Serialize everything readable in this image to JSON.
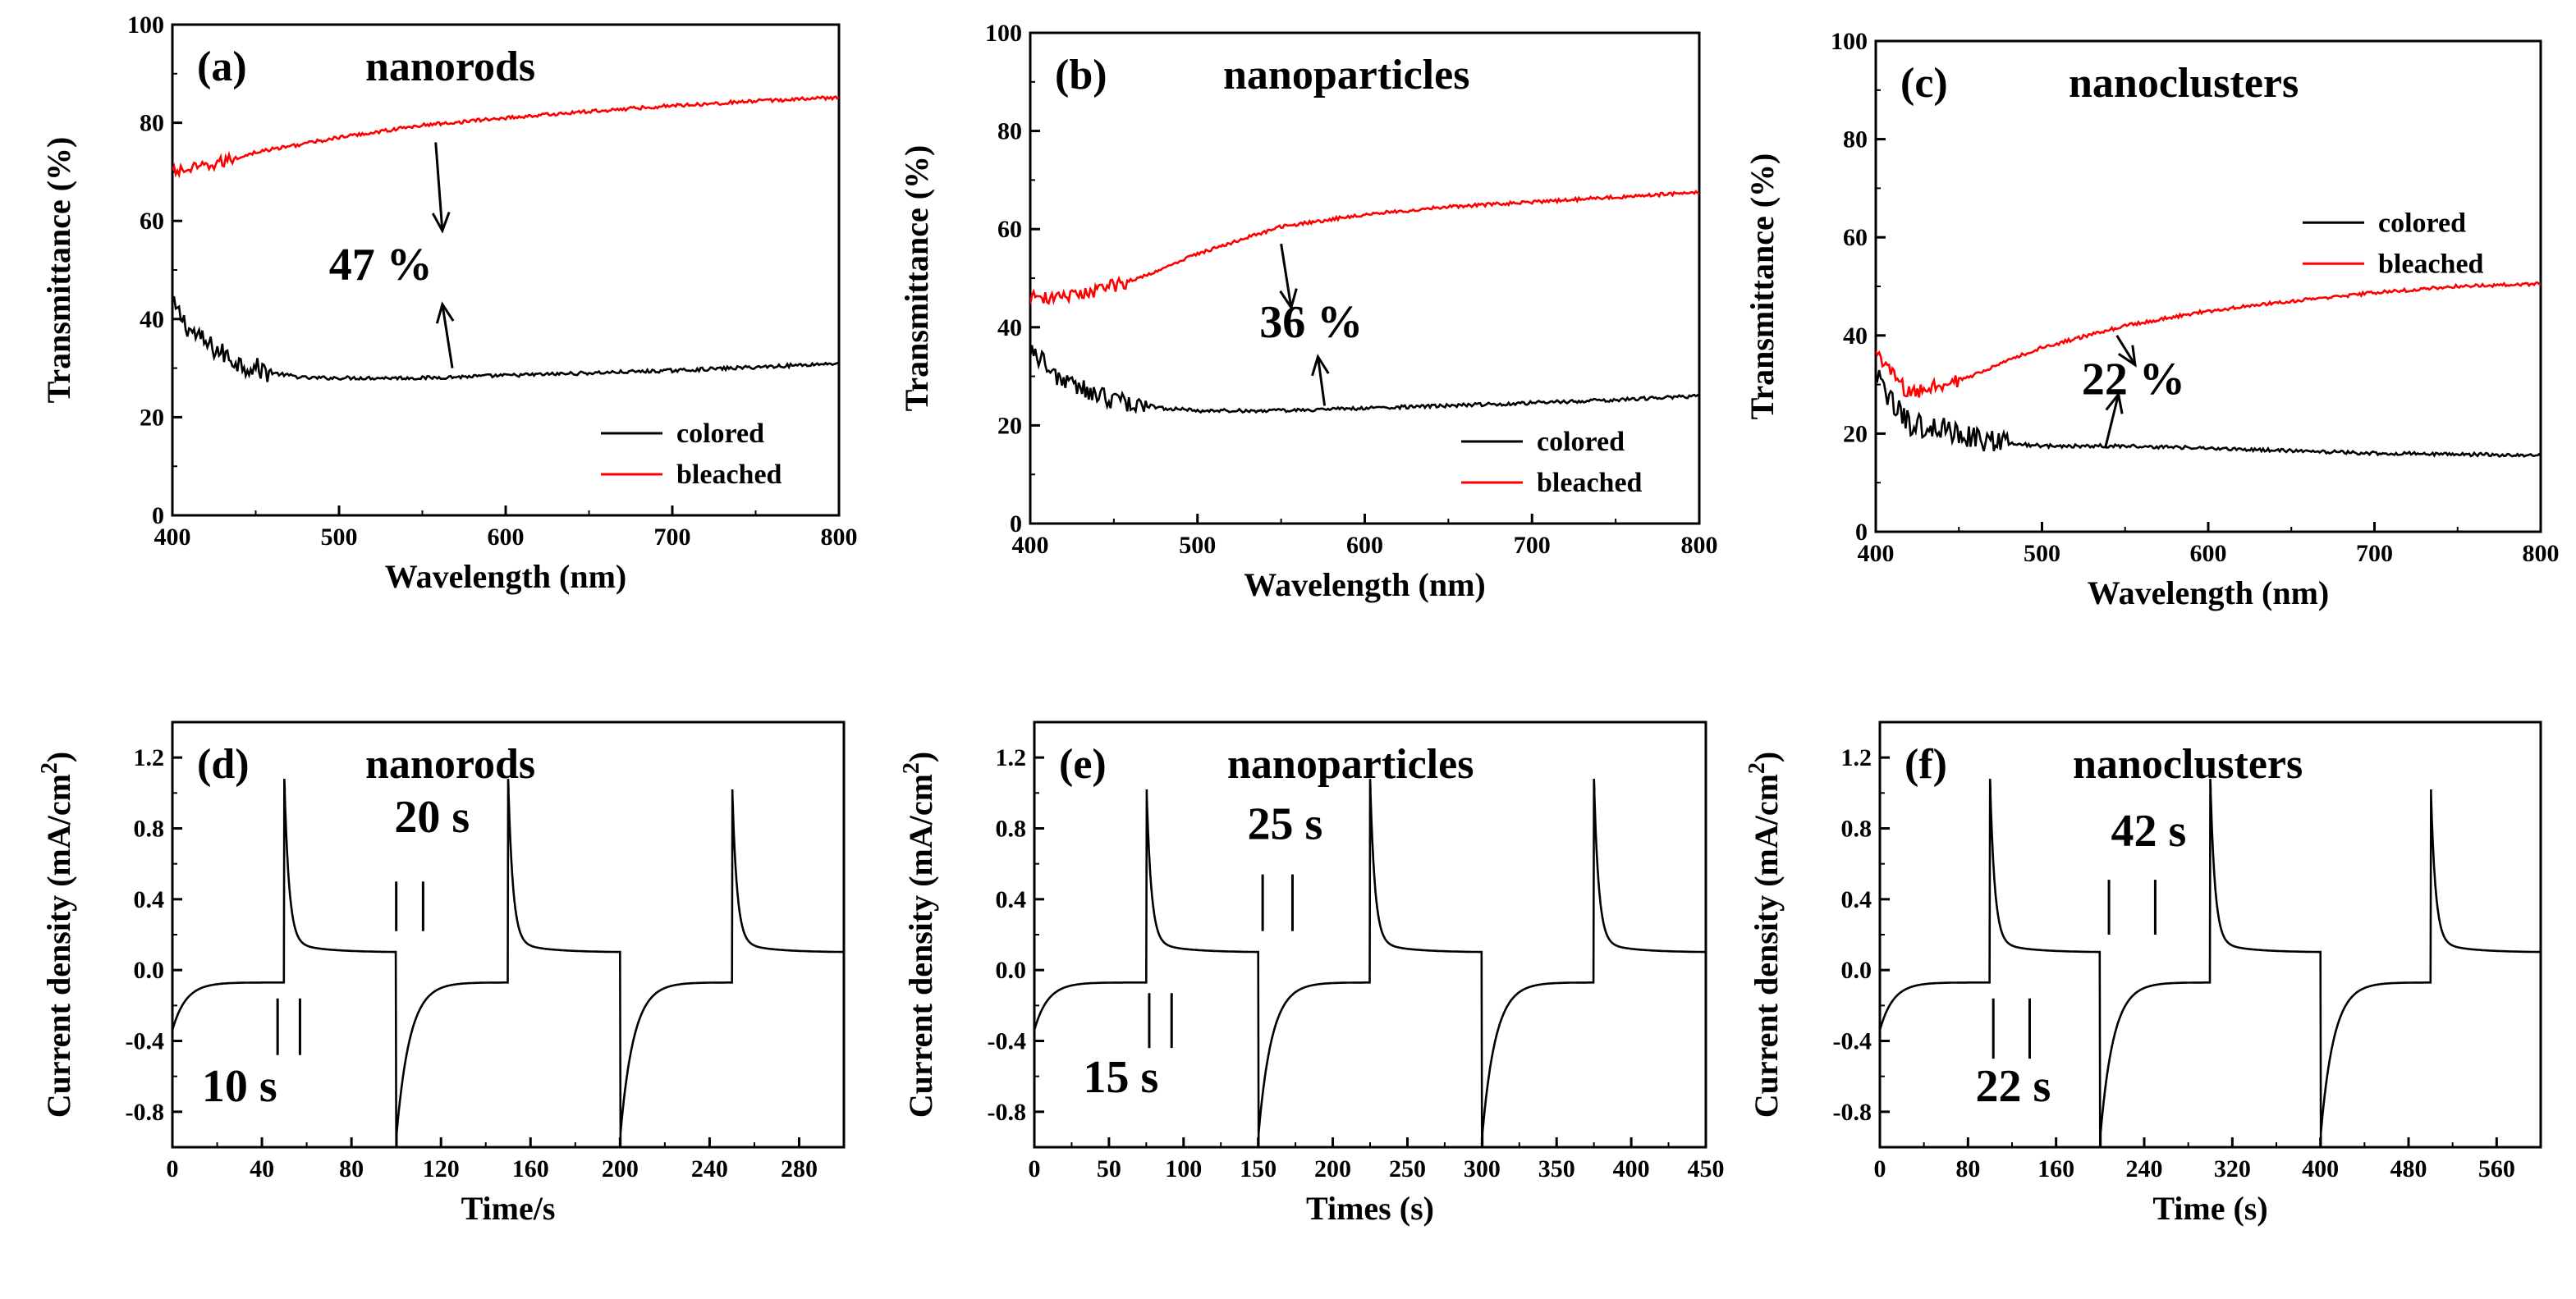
{
  "chart_data": [
    {
      "id": "a",
      "type": "line",
      "panel_label": "(a)",
      "title": "nanorods",
      "xlabel": "Wavelength (nm)",
      "ylabel": "Transmittance (%)",
      "xlim": [
        400,
        800
      ],
      "ylim": [
        0,
        100
      ],
      "xticks": [
        400,
        500,
        600,
        700,
        800
      ],
      "yticks": [
        0,
        20,
        40,
        60,
        80,
        100
      ],
      "legend": "bottom-right",
      "series": [
        {
          "name": "colored",
          "color": "#000000",
          "noise": 2.2,
          "noise_until": 460,
          "x": [
            400,
            410,
            420,
            440,
            460,
            480,
            500,
            550,
            600,
            650,
            700,
            750,
            800
          ],
          "y": [
            43,
            38,
            35,
            31,
            29,
            28,
            28,
            28,
            28.5,
            29,
            29.5,
            30.2,
            31
          ]
        },
        {
          "name": "bleached",
          "color": "#ff0000",
          "noise": 1.2,
          "noise_until": 440,
          "x": [
            400,
            420,
            450,
            500,
            550,
            600,
            650,
            700,
            750,
            800
          ],
          "y": [
            70,
            71,
            74,
            77,
            79.5,
            81,
            82.3,
            83.5,
            84.4,
            85.2
          ]
        }
      ],
      "annotation": "47 %"
    },
    {
      "id": "b",
      "type": "line",
      "panel_label": "(b)",
      "title": "nanoparticles",
      "xlabel": "Wavelength (nm)",
      "ylabel": "Transmittance (%)",
      "xlim": [
        400,
        800
      ],
      "ylim": [
        0,
        100
      ],
      "xticks": [
        400,
        500,
        600,
        700,
        800
      ],
      "yticks": [
        0,
        20,
        40,
        60,
        80,
        100
      ],
      "legend": "bottom-right",
      "series": [
        {
          "name": "colored",
          "color": "#000000",
          "noise": 2.0,
          "noise_until": 470,
          "x": [
            400,
            410,
            420,
            440,
            460,
            480,
            500,
            550,
            600,
            650,
            700,
            750,
            800
          ],
          "y": [
            36,
            32,
            29,
            26,
            24.5,
            23.5,
            23,
            23,
            23.5,
            24,
            24.6,
            25.2,
            26
          ]
        },
        {
          "name": "bleached",
          "color": "#ff0000",
          "noise": 1.4,
          "noise_until": 460,
          "x": [
            400,
            420,
            440,
            460,
            480,
            500,
            550,
            600,
            650,
            700,
            750,
            800
          ],
          "y": [
            46,
            46,
            47.5,
            49.5,
            52,
            55,
            60.5,
            63,
            64.5,
            65.5,
            66.5,
            67.5
          ]
        }
      ],
      "annotation": "36 %"
    },
    {
      "id": "c",
      "type": "line",
      "panel_label": "(c)",
      "title": "nanoclusters",
      "xlabel": "Wavelength (nm)",
      "ylabel": "Transmittance (%)",
      "xlim": [
        400,
        800
      ],
      "ylim": [
        0,
        100
      ],
      "xticks": [
        400,
        500,
        600,
        700,
        800
      ],
      "yticks": [
        0,
        20,
        40,
        60,
        80,
        100
      ],
      "legend": "center-right",
      "series": [
        {
          "name": "colored",
          "color": "#000000",
          "noise": 2.4,
          "noise_until": 480,
          "x": [
            400,
            410,
            420,
            440,
            460,
            480,
            500,
            550,
            600,
            650,
            700,
            750,
            800
          ],
          "y": [
            32,
            26,
            22,
            21,
            19,
            18,
            17.5,
            17.5,
            17,
            16.5,
            16,
            15.8,
            15.5
          ]
        },
        {
          "name": "bleached",
          "color": "#ff0000",
          "noise": 1.6,
          "noise_until": 450,
          "x": [
            400,
            410,
            420,
            440,
            460,
            480,
            500,
            550,
            600,
            650,
            700,
            750,
            800
          ],
          "y": [
            37,
            32,
            28,
            30,
            32,
            35,
            37.5,
            42,
            45,
            47,
            48.7,
            50,
            50.5
          ]
        }
      ],
      "annotation": "22 %"
    },
    {
      "id": "d",
      "type": "line",
      "panel_label": "(d)",
      "title": "nanorods",
      "xlabel": "Time/s",
      "ylabel": "Current density (mA/cm",
      "ylabel_sup": "2",
      "ylabel_end": ")",
      "xlim": [
        0,
        300
      ],
      "ylim": [
        -1.0,
        1.4
      ],
      "xticks": [
        0,
        40,
        80,
        120,
        160,
        200,
        240,
        280
      ],
      "yticks": [
        -0.8,
        -0.4,
        0.0,
        0.4,
        0.8,
        1.2
      ],
      "ytick_labels": [
        "-0.8",
        "-0.4",
        "0.0",
        "0.4",
        "0.8",
        "1.2"
      ],
      "half_period": 50,
      "t_max": 300,
      "annotations": [
        "20 s",
        "10 s"
      ]
    },
    {
      "id": "e",
      "type": "line",
      "panel_label": "(e)",
      "title": "nanoparticles",
      "xlabel": "Times (s)",
      "ylabel": "Current density (mA/cm",
      "ylabel_sup": "2",
      "ylabel_end": ")",
      "xlim": [
        0,
        450
      ],
      "ylim": [
        -1.0,
        1.4
      ],
      "xticks": [
        0,
        50,
        100,
        150,
        200,
        250,
        300,
        350,
        400,
        450
      ],
      "yticks": [
        -0.8,
        -0.4,
        0.0,
        0.4,
        0.8,
        1.2
      ],
      "ytick_labels": [
        "-0.8",
        "-0.4",
        "0.0",
        "0.4",
        "0.8",
        "1.2"
      ],
      "half_period": 75,
      "t_max": 450,
      "annotations": [
        "25 s",
        "15 s"
      ]
    },
    {
      "id": "f",
      "type": "line",
      "panel_label": "(f)",
      "title": "nanoclusters",
      "xlabel": "Time (s)",
      "ylabel": "Current density (mA/cm",
      "ylabel_sup": "2",
      "ylabel_end": ")",
      "xlim": [
        0,
        600
      ],
      "ylim": [
        -1.0,
        1.4
      ],
      "xticks": [
        0,
        80,
        160,
        240,
        320,
        400,
        480,
        560
      ],
      "yticks": [
        -0.8,
        -0.4,
        0.0,
        0.4,
        0.8,
        1.2
      ],
      "ytick_labels": [
        "-0.8",
        "-0.4",
        "0.0",
        "0.4",
        "0.8",
        "1.2"
      ],
      "half_period": 100,
      "t_max": 600,
      "annotations": [
        "42 s",
        "22 s"
      ]
    }
  ]
}
